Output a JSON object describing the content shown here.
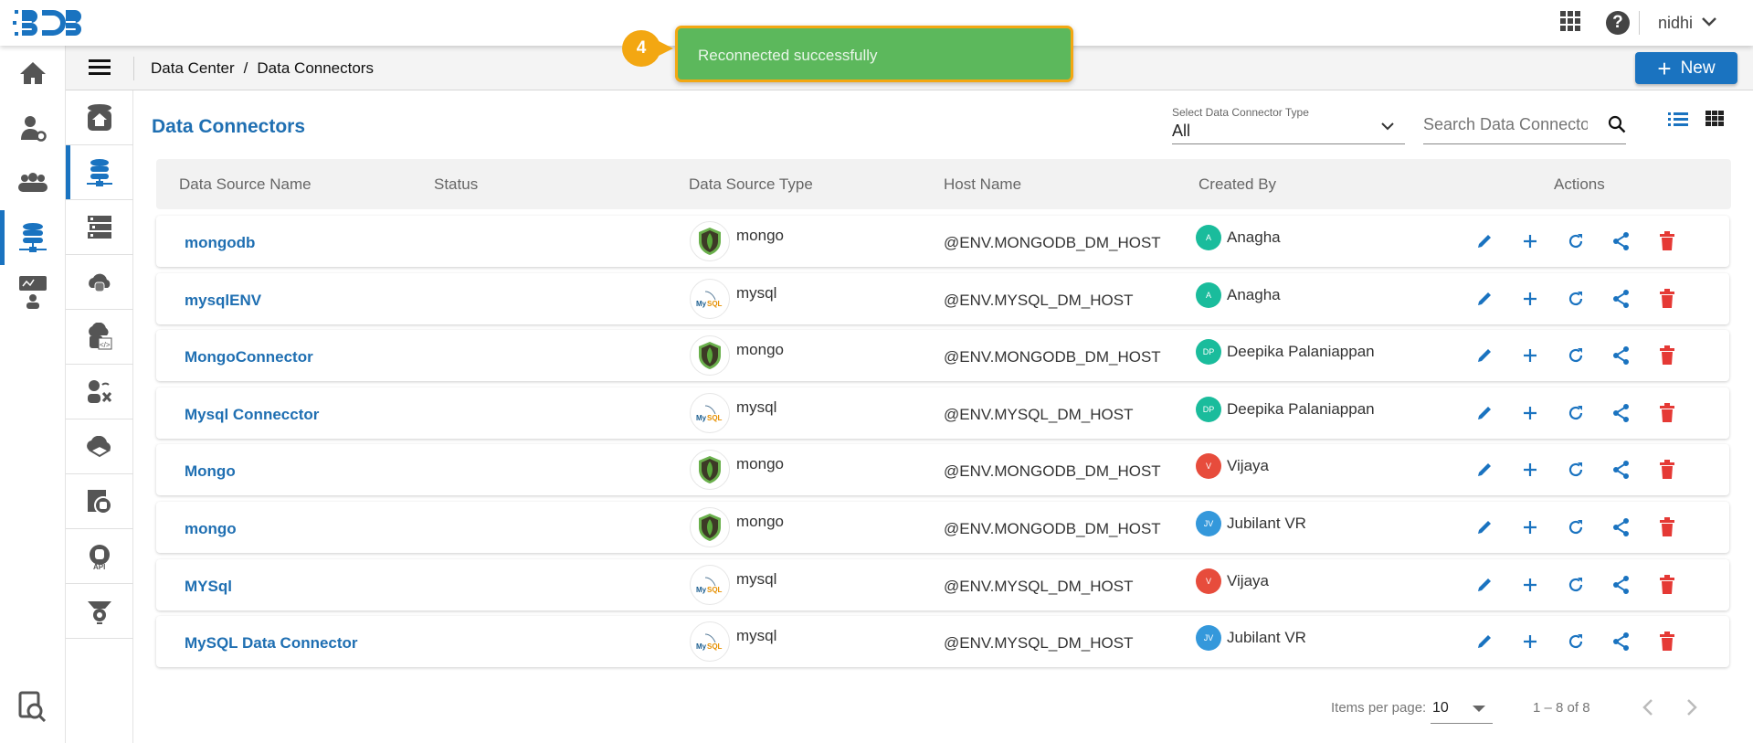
{
  "header": {
    "user": "nidhi",
    "logo_text": "BDB"
  },
  "breadcrumb": [
    "Data Center",
    "/",
    "Data Connectors"
  ],
  "new_button": "New",
  "toast": {
    "message": "Reconnected successfully",
    "step": "4"
  },
  "page_title": "Data Connectors",
  "filter": {
    "label": "Select Data Connector Type",
    "value": "All"
  },
  "search": {
    "placeholder": "Search Data Connectors"
  },
  "columns": [
    "Data Source Name",
    "Status",
    "Data Source Type",
    "Host Name",
    "Created By",
    "Actions"
  ],
  "rows": [
    {
      "name": "mongodb",
      "type": "mongo",
      "host": "@ENV.MONGODB_DM_HOST",
      "initials": "A",
      "by": "Anagha",
      "color": "#1abc9c"
    },
    {
      "name": "mysqlENV",
      "type": "mysql",
      "host": "@ENV.MYSQL_DM_HOST",
      "initials": "A",
      "by": "Anagha",
      "color": "#1abc9c"
    },
    {
      "name": "MongoConnector",
      "type": "mongo",
      "host": "@ENV.MONGODB_DM_HOST",
      "initials": "DP",
      "by": "Deepika Palaniappan",
      "color": "#1abc9c"
    },
    {
      "name": "Mysql Connecctor",
      "type": "mysql",
      "host": "@ENV.MYSQL_DM_HOST",
      "initials": "DP",
      "by": "Deepika Palaniappan",
      "color": "#1abc9c"
    },
    {
      "name": "Mongo",
      "type": "mongo",
      "host": "@ENV.MONGODB_DM_HOST",
      "initials": "V",
      "by": "Vijaya",
      "color": "#e74c3c"
    },
    {
      "name": "mongo",
      "type": "mongo",
      "host": "@ENV.MONGODB_DM_HOST",
      "initials": "JV",
      "by": "Jubilant VR",
      "color": "#3498db"
    },
    {
      "name": "MYSql",
      "type": "mysql",
      "host": "@ENV.MYSQL_DM_HOST",
      "initials": "V",
      "by": "Vijaya",
      "color": "#e74c3c"
    },
    {
      "name": "MySQL Data Connector",
      "type": "mysql",
      "host": "@ENV.MYSQL_DM_HOST",
      "initials": "JV",
      "by": "Jubilant VR",
      "color": "#3498db"
    }
  ],
  "pagination": {
    "label": "Items per page:",
    "per_page": "10",
    "range": "1 – 8 of 8"
  },
  "colors": {
    "accent": "#1a73c0",
    "delete": "#e53935",
    "toast": "#5cb85c",
    "badge": "#f3a712"
  }
}
